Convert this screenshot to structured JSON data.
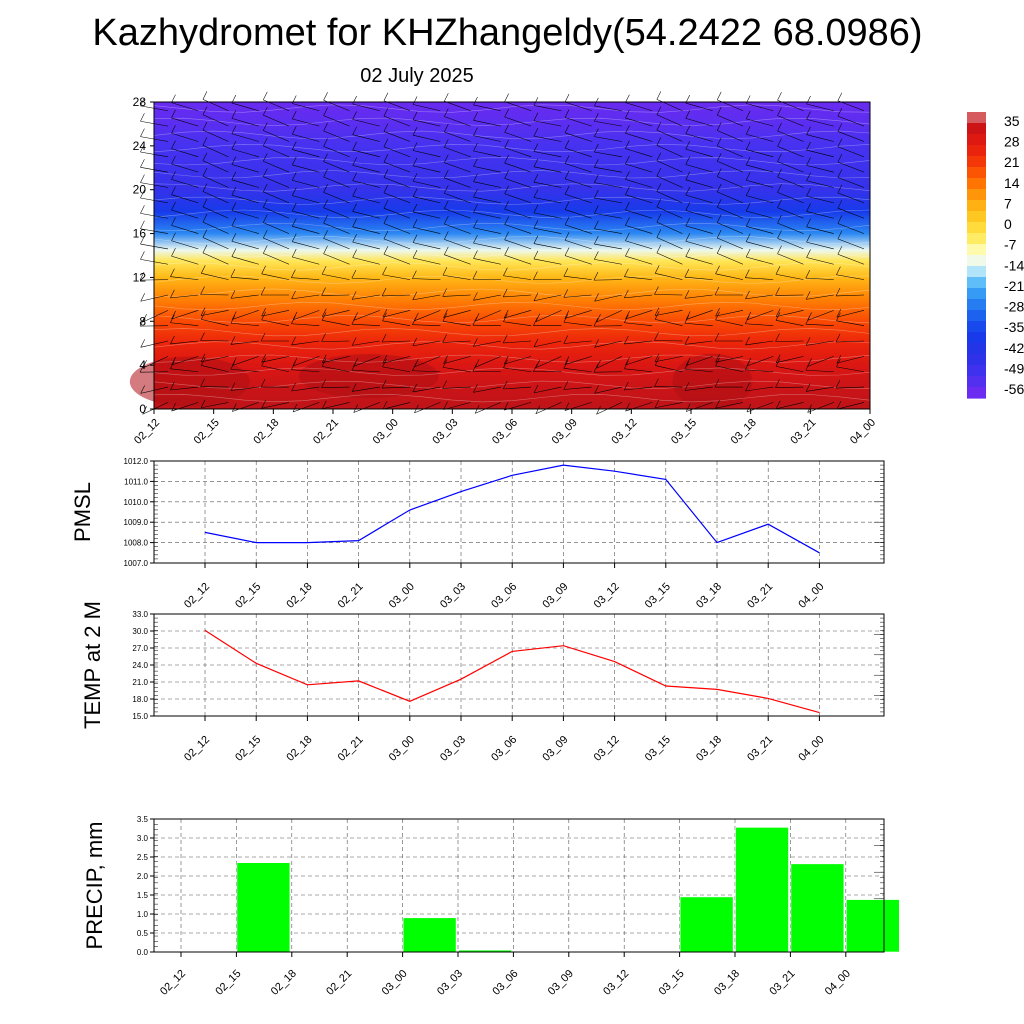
{
  "title": "Kazhydromet for KHZhangeldy(54.2422 68.0986)",
  "subtitle": "02 July 2025",
  "time_labels": [
    "02_12",
    "02_15",
    "02_18",
    "02_21",
    "03_00",
    "03_03",
    "03_06",
    "03_09",
    "03_12",
    "03_15",
    "03_18",
    "03_21",
    "04_00"
  ],
  "chart_data": [
    {
      "type": "heatmap",
      "title": "",
      "xlabel": "",
      "ylabel": "",
      "x": [
        "02_12",
        "02_15",
        "02_18",
        "02_21",
        "03_00",
        "03_03",
        "03_06",
        "03_09",
        "03_12",
        "03_15",
        "03_18",
        "03_21",
        "04_00"
      ],
      "y_ticks": [
        0,
        4,
        8,
        12,
        16,
        20,
        24,
        28
      ],
      "ylim": [
        0,
        28
      ],
      "colorbar_labels": [
        "35",
        "28",
        "21",
        "14",
        "7",
        "0",
        "-7",
        "-14",
        "-21",
        "-28",
        "-35",
        "-42",
        "-49",
        "-56"
      ],
      "colorbar_range": [
        -56,
        35
      ],
      "profile_levels": [
        0,
        2,
        4,
        6,
        8,
        10,
        12,
        13.5,
        14.5,
        16,
        18,
        20,
        22,
        24,
        26,
        28
      ],
      "profile_values": [
        32,
        30,
        27,
        22,
        17,
        11,
        4,
        -4,
        -13,
        -25,
        -36,
        -45,
        -47,
        -49,
        -52,
        -54
      ],
      "wind_barbs": true
    },
    {
      "type": "line",
      "title": "",
      "ylabel": "PMSL",
      "x": [
        "02_12",
        "02_15",
        "02_18",
        "02_21",
        "03_00",
        "03_03",
        "03_06",
        "03_09",
        "03_12",
        "03_15",
        "03_18",
        "03_21",
        "04_00"
      ],
      "values": [
        1008.5,
        1008.0,
        1008.0,
        1008.1,
        1009.6,
        1010.5,
        1011.3,
        1011.8,
        1011.5,
        1011.1,
        1008.0,
        1008.9,
        1007.5
      ],
      "ylim": [
        1007.0,
        1012.0
      ],
      "y_ticks": [
        "1007.0",
        "1008.0",
        "1009.0",
        "1010.0",
        "1011.0",
        "1012.0"
      ],
      "grid": true,
      "color": "#0000ff"
    },
    {
      "type": "line",
      "title": "",
      "ylabel": "TEMP at 2 M",
      "x": [
        "02_12",
        "02_15",
        "02_18",
        "02_21",
        "03_00",
        "03_03",
        "03_06",
        "03_09",
        "03_12",
        "03_15",
        "03_18",
        "03_21",
        "04_00"
      ],
      "values": [
        30.1,
        24.3,
        20.5,
        21.2,
        17.6,
        21.5,
        26.4,
        27.4,
        24.6,
        20.3,
        19.7,
        18.1,
        15.6
      ],
      "ylim": [
        15.0,
        33.0
      ],
      "y_ticks": [
        "15.0",
        "18.0",
        "21.0",
        "24.0",
        "27.0",
        "30.0",
        "33.0"
      ],
      "grid": true,
      "color": "#ff0000"
    },
    {
      "type": "bar",
      "title": "",
      "ylabel": "PRECIP, mm",
      "categories": [
        "02_12",
        "02_15",
        "02_18",
        "02_21",
        "03_00",
        "03_03",
        "03_06",
        "03_09",
        "03_12",
        "03_15",
        "03_18",
        "03_21",
        "04_00"
      ],
      "values": [
        0,
        2.35,
        0,
        0,
        0.9,
        0.05,
        0,
        0,
        0,
        1.45,
        3.28,
        2.32,
        1.38
      ],
      "ylim": [
        0.0,
        3.5
      ],
      "y_ticks": [
        "0.0",
        "0.5",
        "1.0",
        "1.5",
        "2.0",
        "2.5",
        "3.0",
        "3.5"
      ],
      "grid": true,
      "color": "#00ff00"
    }
  ]
}
